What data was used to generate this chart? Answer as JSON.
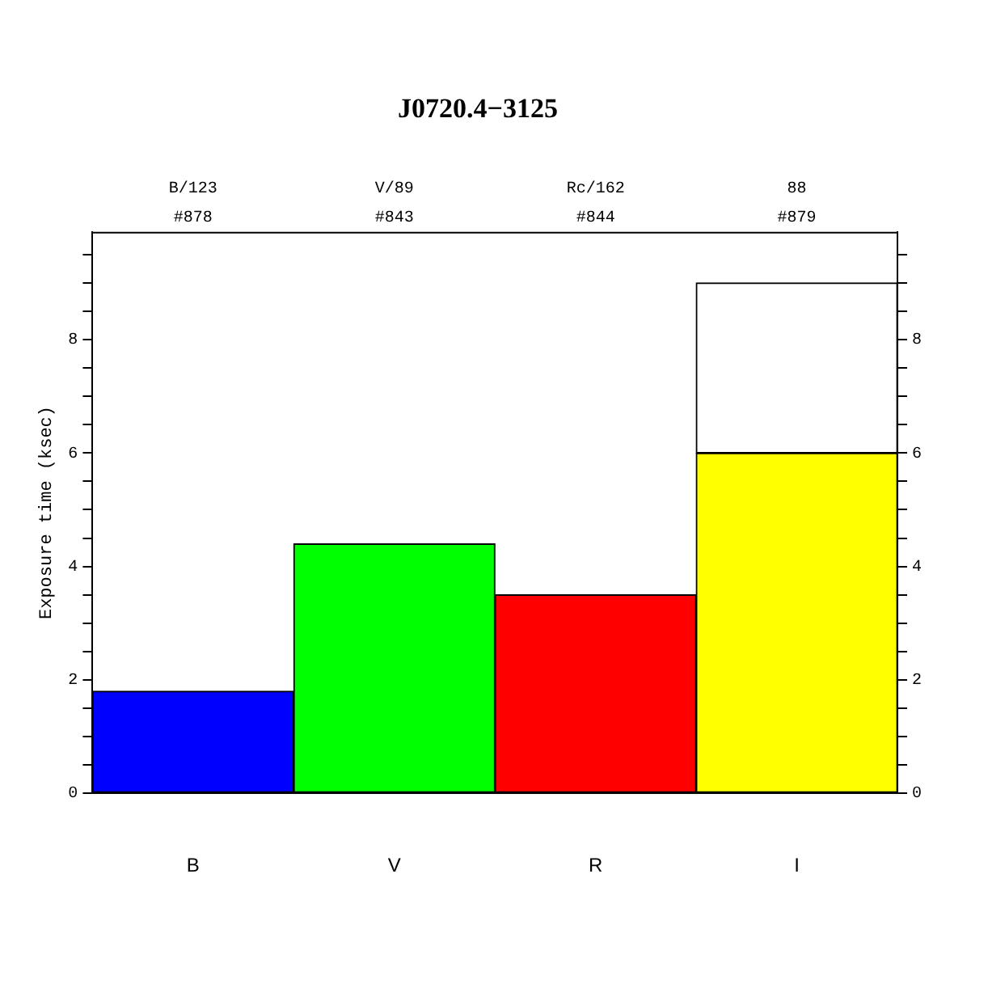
{
  "chart_data": {
    "type": "bar",
    "title": "J0720.4−3125",
    "ylabel": "Exposure time (ksec)",
    "categories": [
      "B",
      "V",
      "R",
      "I"
    ],
    "stacked": true,
    "series": [
      {
        "colors": [
          "#0000ff",
          "#00ff00",
          "#ff0000",
          "#ffff00"
        ],
        "values": [
          1.8,
          4.4,
          3.5,
          6.0
        ]
      },
      {
        "color": "#ffffff",
        "values": [
          null,
          null,
          null,
          3.0
        ]
      }
    ],
    "ylim": [
      0,
      9.9
    ],
    "yticks": [
      0,
      {
        "value": 0.5,
        "label": null
      },
      {
        "value": 1,
        "label": null
      },
      {
        "value": 1.5,
        "label": null
      },
      2,
      {
        "value": 2.5,
        "label": null
      },
      {
        "value": 3,
        "label": null
      },
      {
        "value": 3.5,
        "label": null
      },
      4,
      {
        "value": 4.5,
        "label": null
      },
      {
        "value": 5,
        "label": null
      },
      {
        "value": 5.5,
        "label": null
      },
      6,
      {
        "value": 6.5,
        "label": null
      },
      {
        "value": 7,
        "label": null
      },
      {
        "value": 7.5,
        "label": null
      },
      8,
      {
        "value": 8.5,
        "label": null
      },
      {
        "value": 9,
        "label": null
      },
      {
        "value": 9.5,
        "label": null
      }
    ],
    "y2lim": [
      0,
      9.9
    ],
    "y2ticks": [
      0,
      {
        "value": 0.5,
        "label": null
      },
      {
        "value": 1,
        "label": null
      },
      {
        "value": 1.5,
        "label": null
      },
      2,
      {
        "value": 2.5,
        "label": null
      },
      {
        "value": 3,
        "label": null
      },
      {
        "value": 3.5,
        "label": null
      },
      4,
      {
        "value": 4.5,
        "label": null
      },
      {
        "value": 5,
        "label": null
      },
      {
        "value": 5.5,
        "label": null
      },
      6,
      {
        "value": 6.5,
        "label": null
      },
      {
        "value": 7,
        "label": null
      },
      {
        "value": 7.5,
        "label": null
      },
      8,
      {
        "value": 8.5,
        "label": null
      },
      {
        "value": 9,
        "label": null
      },
      {
        "value": 9.5,
        "label": null
      }
    ],
    "annotations": [
      "B/123\n#878",
      "V/89\n#843",
      "Rc/162\n#844",
      "88\n#879"
    ],
    "grid": false,
    "legend": false
  }
}
